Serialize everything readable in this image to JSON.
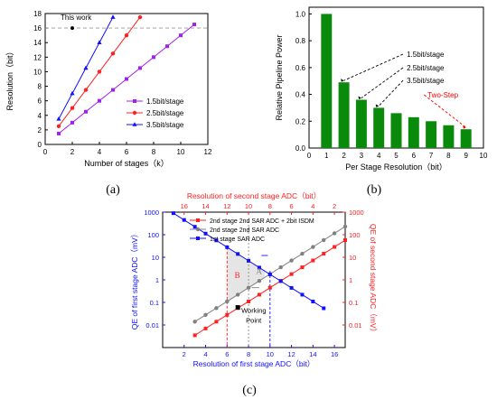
{
  "figure": {
    "panel_labels": [
      "(a)",
      "(b)",
      "(c)"
    ]
  },
  "colors": {
    "purple": "#a020f0",
    "red": "#ff2020",
    "blue": "#1010ff",
    "green": "#0a8a0a",
    "gray": "#808080",
    "dashed_gray": "#999999",
    "annotation_red": "#ff0000"
  },
  "chart_data": [
    {
      "type": "line",
      "panel": "(a)",
      "xlabel": "Number of stages（k）",
      "ylabel": "Resolution（bit）",
      "xlim": [
        0,
        12
      ],
      "ylim": [
        0,
        18
      ],
      "xticks": [
        "0",
        "2",
        "4",
        "6",
        "8",
        "10",
        "12"
      ],
      "yticks": [
        "0",
        "2",
        "4",
        "6",
        "8",
        "10",
        "12",
        "14",
        "16",
        "18"
      ],
      "reference_line": {
        "y": 16,
        "style": "dashed"
      },
      "annotation": {
        "text": "This work",
        "point": [
          2,
          16
        ]
      },
      "legend_position": "bottom-right",
      "series": [
        {
          "name": "1.5bit/stage",
          "color": "#a020f0",
          "marker": "square",
          "x": [
            1,
            2,
            3,
            4,
            5,
            6,
            7,
            8,
            9,
            10,
            11
          ],
          "y": [
            1.5,
            3,
            4.5,
            6,
            7.5,
            9,
            10.5,
            12,
            13.5,
            15,
            16.5
          ]
        },
        {
          "name": "2.5bit/stage",
          "color": "#ff2020",
          "marker": "circle",
          "x": [
            1,
            2,
            3,
            4,
            5,
            6,
            7
          ],
          "y": [
            2.5,
            5,
            7.5,
            10,
            12.5,
            15,
            17.5
          ]
        },
        {
          "name": "3.5bit/stage",
          "color": "#1010ff",
          "marker": "triangle",
          "x": [
            1,
            2,
            3,
            4,
            5
          ],
          "y": [
            3.5,
            7,
            10.5,
            14,
            17.5
          ]
        }
      ]
    },
    {
      "type": "bar",
      "panel": "(b)",
      "xlabel": "Per Stage Resolution（bit）",
      "ylabel": "Relative Pipeline Power",
      "xlim": [
        0,
        10
      ],
      "ylim": [
        0,
        1.05
      ],
      "xticks": [
        "0",
        "1",
        "2",
        "3",
        "4",
        "5",
        "6",
        "7",
        "8",
        "9",
        "10"
      ],
      "yticks": [
        "0.0",
        "0.2",
        "0.4",
        "0.6",
        "0.8",
        "1.0"
      ],
      "categories": [
        1,
        2,
        3,
        4,
        5,
        6,
        7,
        8,
        9
      ],
      "values": [
        1.0,
        0.49,
        0.36,
        0.3,
        0.26,
        0.23,
        0.2,
        0.17,
        0.14
      ],
      "annotations": [
        {
          "text": "1.5bit/stage",
          "points_to": 2
        },
        {
          "text": "2.5bit/stage",
          "points_to": 3
        },
        {
          "text": "3.5bit/stage",
          "points_to": 4
        },
        {
          "text": "Two-Step",
          "points_to": 9,
          "color": "#ff0000"
        }
      ]
    },
    {
      "type": "line",
      "panel": "(c)",
      "title_top": "Resolution of second stage ADC（bit）",
      "xlabel": "Resolution of first stage ADC（bit）",
      "ylabel_left": "QE of first stage ADC（mV）",
      "ylabel_right": "QE of second stage ADC（mV）",
      "xlim": [
        0,
        17
      ],
      "xticks": [
        "2",
        "4",
        "6",
        "8",
        "10",
        "12",
        "14",
        "16"
      ],
      "xticks_top": [
        "16",
        "14",
        "12",
        "10",
        "8",
        "6",
        "4",
        "2"
      ],
      "yscale": "log",
      "ylim": [
        0.001,
        1000
      ],
      "yticks": [
        "0.01",
        "0.1",
        "1",
        "10",
        "100",
        "1000"
      ],
      "region_labels": [
        "A",
        "B"
      ],
      "annotation": {
        "text": [
          "Working",
          "Point"
        ],
        "point": [
          7,
          0.06
        ]
      },
      "legend_position": "top",
      "series": [
        {
          "name": "2nd stage 2nd SAR ADC + 2bit ISDM",
          "color": "#ff2020",
          "marker": "square",
          "x": [
            3,
            4,
            5,
            6,
            7,
            8,
            9,
            10,
            11,
            12,
            13,
            14,
            15,
            16,
            17
          ],
          "y": [
            0.0035,
            0.007,
            0.014,
            0.028,
            0.056,
            0.11,
            0.22,
            0.45,
            0.9,
            1.8,
            3.6,
            7.2,
            14.4,
            28.8,
            57.6
          ]
        },
        {
          "name": "2nd stage 2nd SAR ADC",
          "color": "#808080",
          "marker": "circle",
          "x": [
            3,
            4,
            5,
            6,
            7,
            8,
            9,
            10,
            11,
            12,
            13,
            14,
            15,
            16,
            17
          ],
          "y": [
            0.014,
            0.028,
            0.056,
            0.11,
            0.22,
            0.45,
            0.9,
            1.8,
            3.6,
            7.2,
            14.4,
            28.8,
            57.6,
            115,
            230
          ]
        },
        {
          "name": "1st  stage SAR ADC",
          "color": "#1010ff",
          "marker": "square",
          "x": [
            1,
            2,
            3,
            4,
            5,
            6,
            7,
            8,
            9,
            10,
            11,
            12,
            13,
            14,
            15
          ],
          "y": [
            900,
            450,
            225,
            112,
            56,
            28,
            14,
            7,
            3.5,
            1.75,
            0.88,
            0.44,
            0.22,
            0.11,
            0.055
          ]
        }
      ]
    }
  ]
}
